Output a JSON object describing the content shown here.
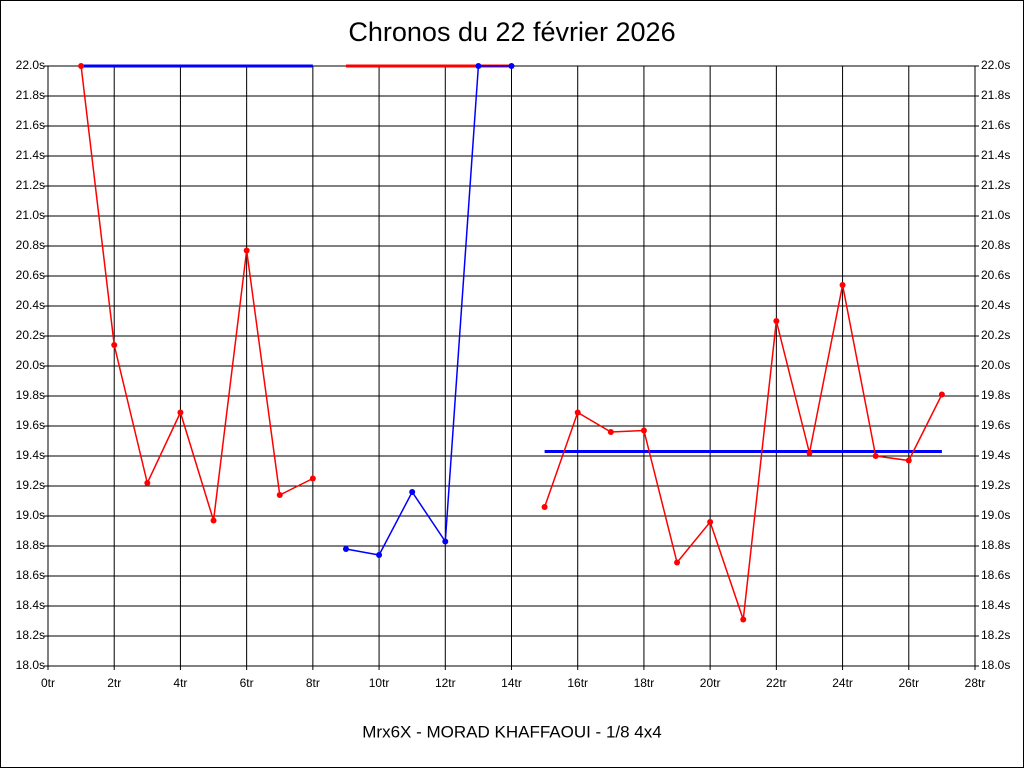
{
  "chart_data": {
    "type": "line",
    "title": "Chronos du 22 février 2026",
    "xlabel": "Mrx6X - MORAD KHAFFAOUI - 1/8 4x4",
    "xlim": [
      0,
      28
    ],
    "ylim": [
      18,
      22
    ],
    "grid": true,
    "xticks": [
      {
        "value": 0,
        "label": "0tr"
      },
      {
        "value": 2,
        "label": "2tr"
      },
      {
        "value": 4,
        "label": "4tr"
      },
      {
        "value": 6,
        "label": "6tr"
      },
      {
        "value": 8,
        "label": "8tr"
      },
      {
        "value": 10,
        "label": "10tr"
      },
      {
        "value": 12,
        "label": "12tr"
      },
      {
        "value": 14,
        "label": "14tr"
      },
      {
        "value": 16,
        "label": "16tr"
      },
      {
        "value": 18,
        "label": "18tr"
      },
      {
        "value": 20,
        "label": "20tr"
      },
      {
        "value": 22,
        "label": "22tr"
      },
      {
        "value": 24,
        "label": "24tr"
      },
      {
        "value": 26,
        "label": "26tr"
      },
      {
        "value": 28,
        "label": "28tr"
      }
    ],
    "yticks": [
      {
        "value": 18.0,
        "label": "18.0s"
      },
      {
        "value": 18.2,
        "label": "18.2s"
      },
      {
        "value": 18.4,
        "label": "18.4s"
      },
      {
        "value": 18.6,
        "label": "18.6s"
      },
      {
        "value": 18.8,
        "label": "18.8s"
      },
      {
        "value": 19.0,
        "label": "19.0s"
      },
      {
        "value": 19.2,
        "label": "19.2s"
      },
      {
        "value": 19.4,
        "label": "19.4s"
      },
      {
        "value": 19.6,
        "label": "19.6s"
      },
      {
        "value": 19.8,
        "label": "19.8s"
      },
      {
        "value": 20.0,
        "label": "20.0s"
      },
      {
        "value": 20.2,
        "label": "20.2s"
      },
      {
        "value": 20.4,
        "label": "20.4s"
      },
      {
        "value": 20.6,
        "label": "20.6s"
      },
      {
        "value": 20.8,
        "label": "20.8s"
      },
      {
        "value": 21.0,
        "label": "21.0s"
      },
      {
        "value": 21.2,
        "label": "21.2s"
      },
      {
        "value": 21.4,
        "label": "21.4s"
      },
      {
        "value": 21.6,
        "label": "21.6s"
      },
      {
        "value": 21.8,
        "label": "21.8s"
      },
      {
        "value": 22.0,
        "label": "22.0s"
      }
    ],
    "series": [
      {
        "color": "#0000ff",
        "markers": false,
        "x": [
          1,
          8
        ],
        "values": [
          22.0,
          22.0
        ]
      },
      {
        "color": "#ff0000",
        "markers": false,
        "x": [
          9,
          14
        ],
        "values": [
          22.0,
          22.0
        ]
      },
      {
        "color": "#0000ff",
        "markers": false,
        "x": [
          15,
          27
        ],
        "values": [
          19.43,
          19.43
        ]
      },
      {
        "color": "#ff0000",
        "markers": true,
        "x": [
          1,
          2,
          3,
          4,
          5,
          6,
          7,
          8
        ],
        "values": [
          22.0,
          20.14,
          19.22,
          19.69,
          18.97,
          20.77,
          19.14,
          19.25
        ]
      },
      {
        "color": "#0000ff",
        "markers": true,
        "x": [
          9,
          10,
          11,
          12,
          13,
          14
        ],
        "values": [
          18.78,
          18.74,
          19.16,
          18.83,
          22.0,
          22.0
        ]
      },
      {
        "color": "#ff0000",
        "markers": true,
        "x": [
          15,
          16,
          17,
          18,
          19,
          20,
          21,
          22,
          23,
          24,
          25,
          26,
          27
        ],
        "values": [
          19.06,
          19.69,
          19.56,
          19.57,
          18.69,
          18.96,
          18.31,
          20.3,
          19.42,
          20.54,
          19.4,
          19.37,
          19.81
        ]
      }
    ]
  }
}
